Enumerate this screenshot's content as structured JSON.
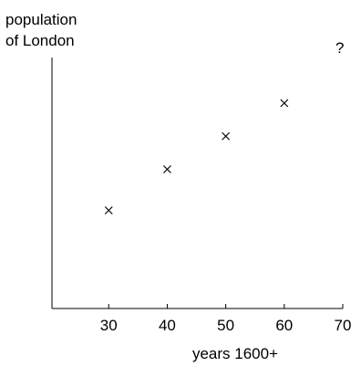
{
  "chart_data": {
    "type": "scatter",
    "ylabel_line1": "population",
    "ylabel_line2": "of London",
    "xlabel": "years 1600+",
    "annotation": "?",
    "marker": "x",
    "x": [
      30,
      40,
      50,
      60
    ],
    "y": [
      4.3,
      6.1,
      7.55,
      9.0
    ],
    "x_ticks": [
      "30",
      "40",
      "50",
      "60",
      "70"
    ],
    "x_tick_values": [
      30,
      40,
      50,
      60,
      70
    ],
    "xlim": [
      20.3,
      70
    ],
    "ylim": [
      0,
      11
    ],
    "grid": false,
    "colors": {
      "axis": "#000000",
      "marker": "#000000",
      "background": "#ffffff"
    }
  }
}
